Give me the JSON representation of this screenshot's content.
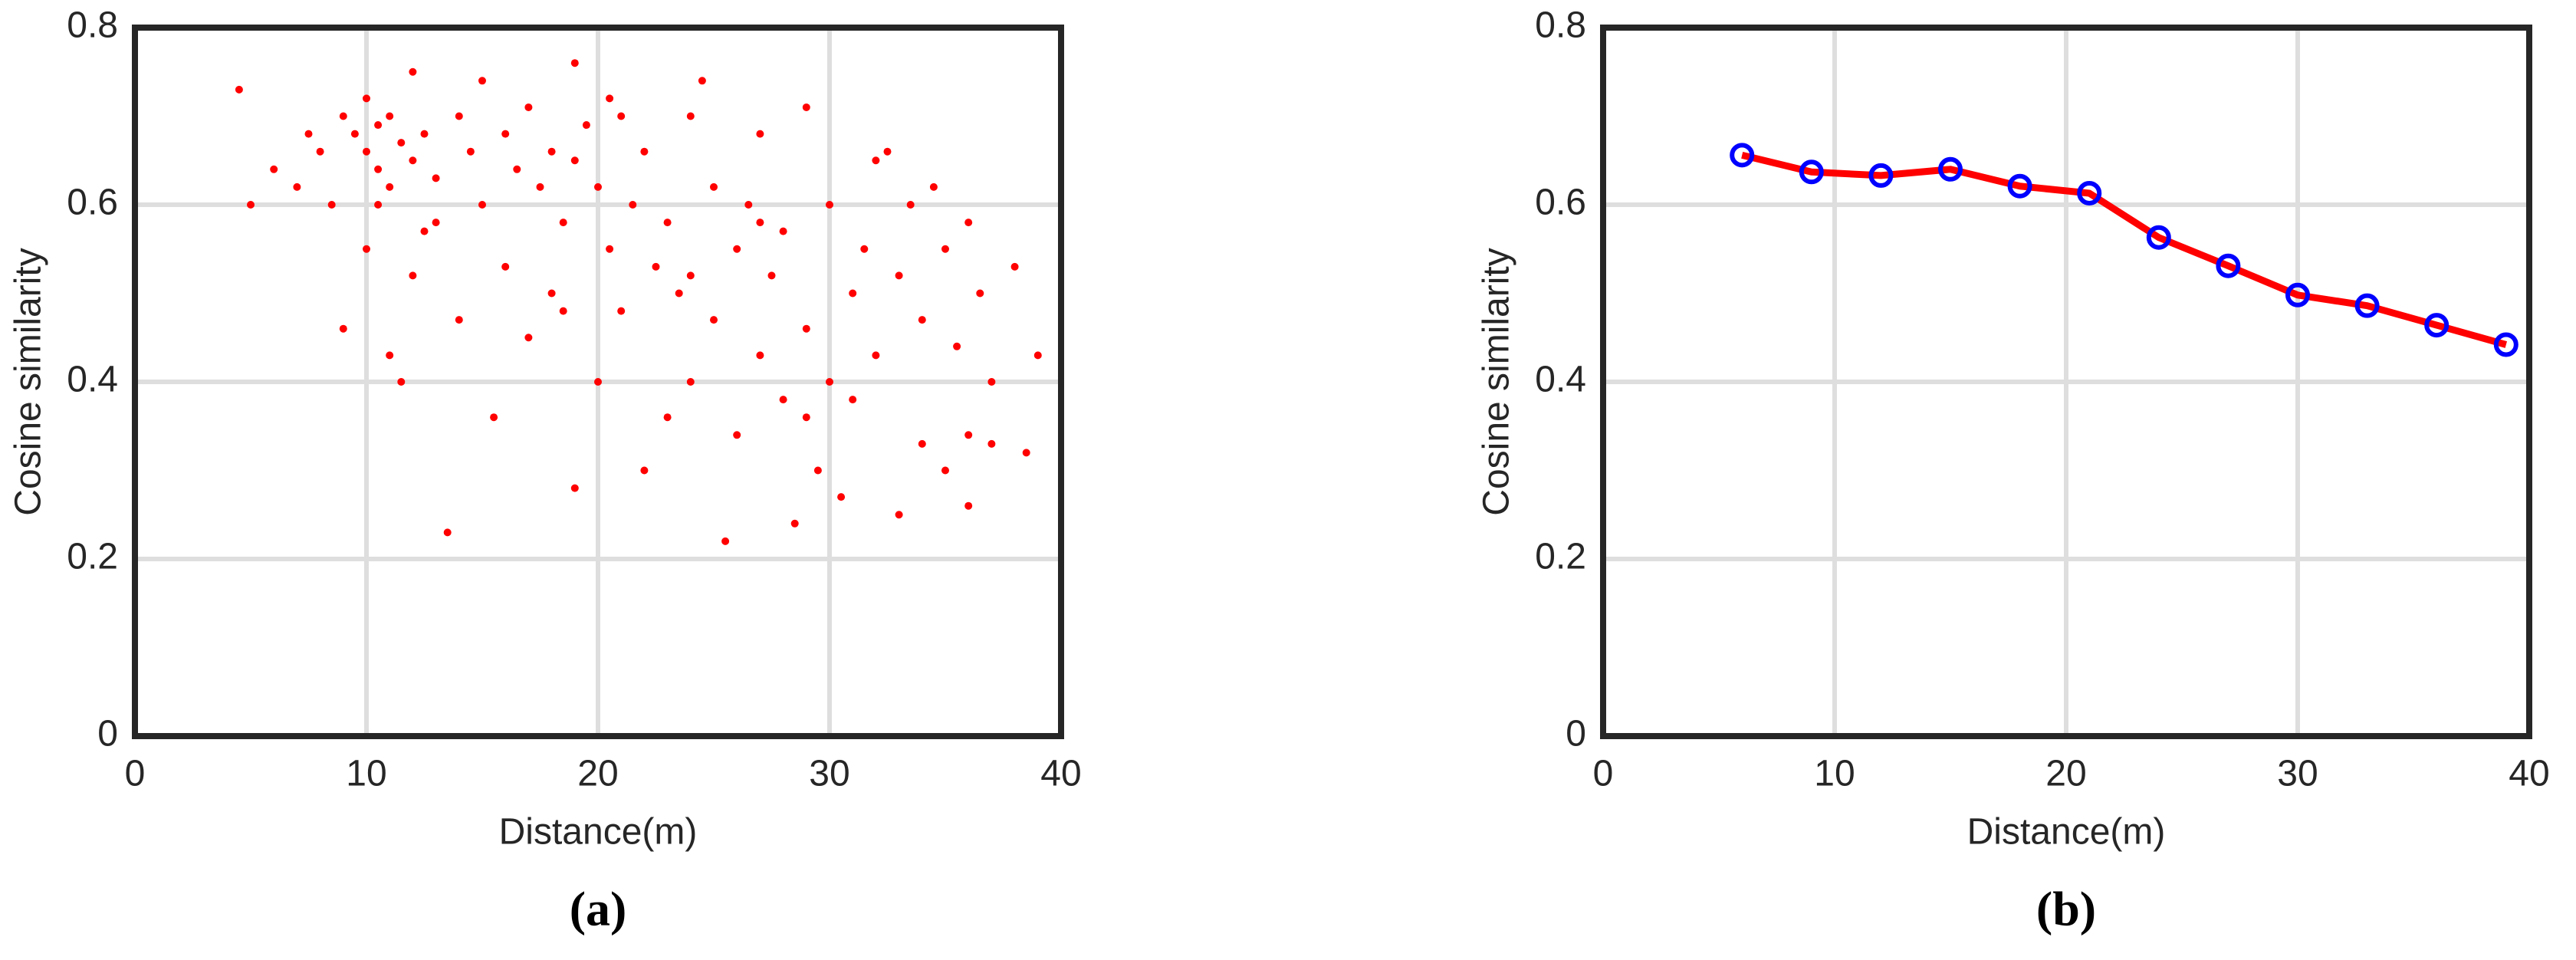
{
  "chart_data": [
    {
      "type": "scatter",
      "caption": "(a)",
      "x_label": "Distance(m)",
      "y_label": "Cosine similarity",
      "color": "#ff0000",
      "grid": true,
      "xlim": [
        0,
        40
      ],
      "xticks": [
        0,
        10,
        20,
        30,
        40
      ],
      "ylim": [
        0,
        0.8
      ],
      "yticks": [
        0,
        0.2,
        0.4,
        0.6,
        0.8
      ],
      "x": [
        4.5,
        5,
        6,
        7,
        7.5,
        8,
        8.5,
        9,
        9,
        9.5,
        10,
        10,
        10,
        10.5,
        10.5,
        11,
        11,
        11,
        11.5,
        11.5,
        12,
        12,
        12,
        12.5,
        13,
        13,
        13.5,
        14,
        14,
        14.5,
        15,
        15,
        15.5,
        16,
        16,
        16.5,
        17,
        17,
        17.5,
        18,
        18,
        18.5,
        19,
        19,
        19,
        19.5,
        20,
        20,
        20.5,
        21,
        21,
        21.5,
        22,
        22,
        22.5,
        23,
        23,
        23.5,
        24,
        24,
        24.5,
        25,
        25,
        25.5,
        26,
        26,
        26.5,
        27,
        27,
        27.5,
        28,
        28,
        28.5,
        29,
        29,
        29.5,
        30,
        30,
        30.5,
        31,
        31,
        31.5,
        32,
        32,
        32.5,
        33,
        33,
        33.5,
        34,
        34,
        34.5,
        35,
        35,
        35.5,
        36,
        36,
        36.5,
        37,
        37,
        38,
        38.5,
        39,
        36,
        20.5,
        27,
        29,
        10.5,
        12.5,
        18.5,
        24
      ],
      "values": [
        0.73,
        0.6,
        0.64,
        0.62,
        0.68,
        0.66,
        0.6,
        0.7,
        0.46,
        0.68,
        0.66,
        0.72,
        0.55,
        0.64,
        0.69,
        0.62,
        0.7,
        0.43,
        0.67,
        0.4,
        0.65,
        0.75,
        0.52,
        0.68,
        0.63,
        0.58,
        0.23,
        0.7,
        0.47,
        0.66,
        0.74,
        0.6,
        0.36,
        0.68,
        0.53,
        0.64,
        0.71,
        0.45,
        0.62,
        0.66,
        0.5,
        0.58,
        0.76,
        0.65,
        0.28,
        0.69,
        0.62,
        0.4,
        0.55,
        0.7,
        0.48,
        0.6,
        0.66,
        0.3,
        0.53,
        0.58,
        0.36,
        0.5,
        0.7,
        0.4,
        0.74,
        0.62,
        0.47,
        0.22,
        0.55,
        0.34,
        0.6,
        0.68,
        0.43,
        0.52,
        0.57,
        0.38,
        0.24,
        0.71,
        0.46,
        0.3,
        0.6,
        0.4,
        0.27,
        0.5,
        0.38,
        0.55,
        0.65,
        0.43,
        0.66,
        0.52,
        0.25,
        0.6,
        0.47,
        0.33,
        0.62,
        0.55,
        0.3,
        0.44,
        0.58,
        0.34,
        0.5,
        0.4,
        0.33,
        0.53,
        0.32,
        0.43,
        0.26,
        0.72,
        0.58,
        0.36,
        0.6,
        0.57,
        0.48,
        0.52
      ]
    },
    {
      "type": "line",
      "caption": "(b)",
      "x_label": "Distance(m)",
      "y_label": "Cosine similarity",
      "color": "#ff0000",
      "marker_color": "#0000ff",
      "grid": true,
      "xlim": [
        0,
        40
      ],
      "xticks": [
        0,
        10,
        20,
        30,
        40
      ],
      "ylim": [
        0,
        0.8
      ],
      "yticks": [
        0,
        0.2,
        0.4,
        0.6,
        0.8
      ],
      "x": [
        6,
        9,
        12,
        15,
        18,
        21,
        24,
        27,
        30,
        33,
        36,
        39
      ],
      "values": [
        0.656,
        0.637,
        0.633,
        0.64,
        0.621,
        0.613,
        0.563,
        0.531,
        0.498,
        0.486,
        0.464,
        0.442
      ]
    }
  ]
}
